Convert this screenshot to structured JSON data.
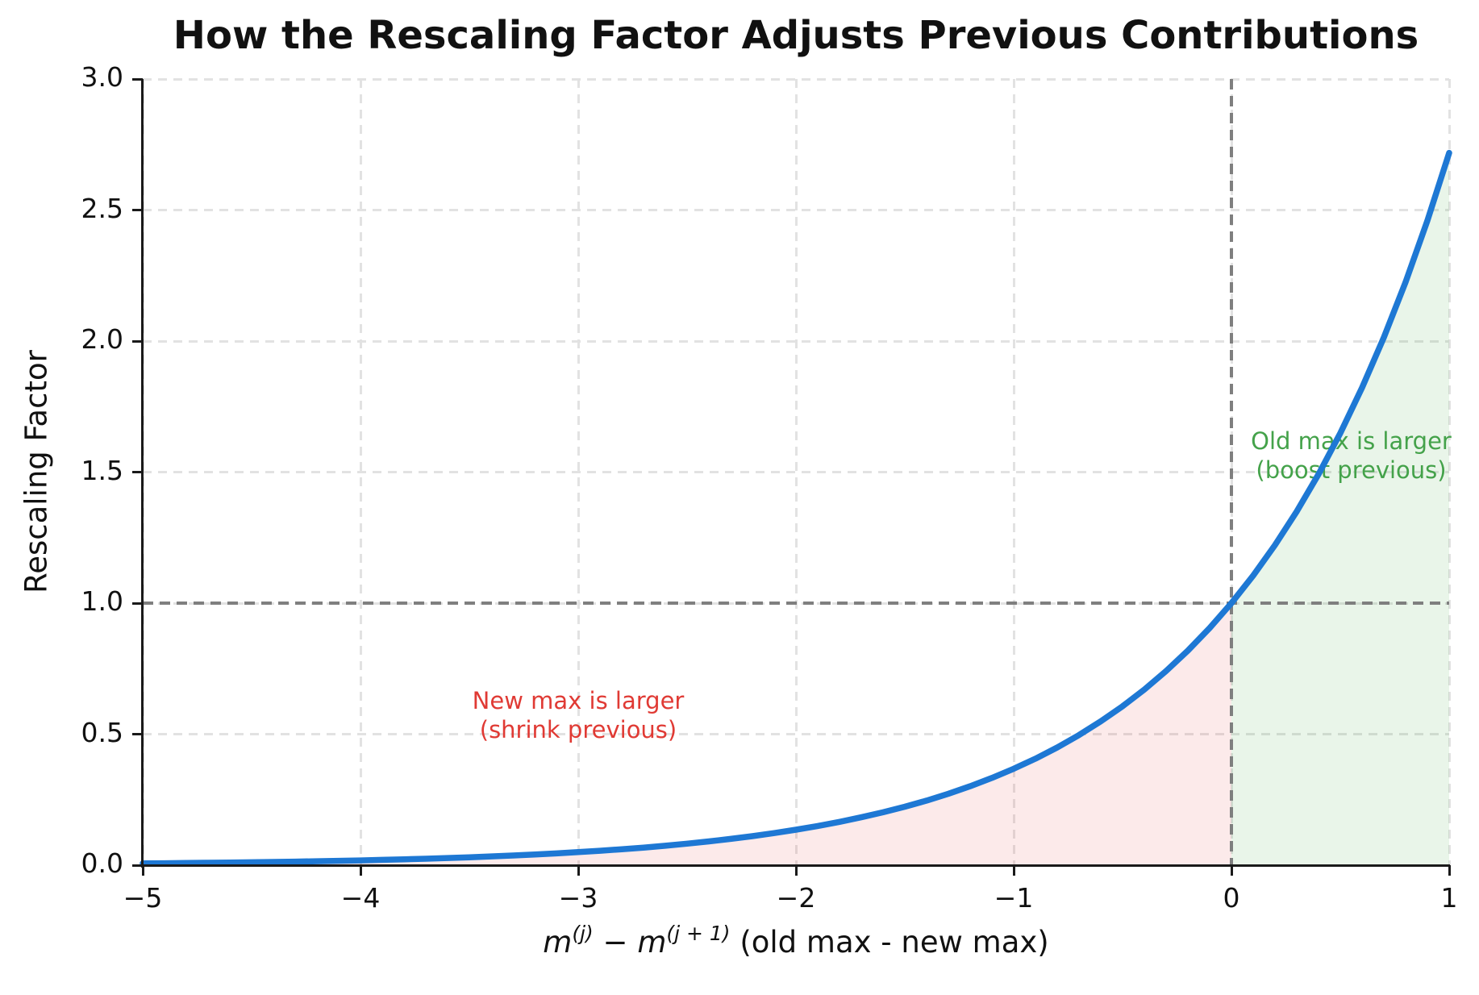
{
  "chart_data": {
    "type": "line",
    "title": "How the Rescaling Factor Adjusts Previous Contributions",
    "ylabel": "Rescaling Factor",
    "xlabel": {
      "var1": "m",
      "sup1": "(j)",
      "operator": " − ",
      "var2": "m",
      "sup2": "(j + 1)",
      "suffix": " (old max - new max)"
    },
    "xlim": [
      -5,
      1
    ],
    "ylim": [
      0,
      3
    ],
    "x_ticks": [
      -5,
      -4,
      -3,
      -2,
      -1,
      0,
      1
    ],
    "x_tick_labels": [
      "−5",
      "−4",
      "−3",
      "−2",
      "−1",
      "0",
      "1"
    ],
    "y_ticks": [
      0,
      0.5,
      1,
      1.5,
      2,
      2.5,
      3
    ],
    "y_tick_labels": [
      "0.0",
      "0.5",
      "1.0",
      "1.5",
      "2.0",
      "2.5",
      "3.0"
    ],
    "grid": true,
    "grid_style": "dashed",
    "series": [
      {
        "name": "rescaling-factor-exp-curve",
        "color": "#1e78d4",
        "line_width": 7.5,
        "x": [
          -5.0,
          -4.9,
          -4.8,
          -4.7,
          -4.6,
          -4.5,
          -4.4,
          -4.3,
          -4.2,
          -4.1,
          -4.0,
          -3.9,
          -3.8,
          -3.7,
          -3.6,
          -3.5,
          -3.4,
          -3.3,
          -3.2,
          -3.1,
          -3.0,
          -2.9,
          -2.8,
          -2.7,
          -2.6,
          -2.5,
          -2.4,
          -2.3,
          -2.2,
          -2.1,
          -2.0,
          -1.9,
          -1.8,
          -1.7,
          -1.6,
          -1.5,
          -1.4,
          -1.3,
          -1.2,
          -1.1,
          -1.0,
          -0.9,
          -0.8,
          -0.7,
          -0.6,
          -0.5,
          -0.4,
          -0.3,
          -0.2,
          -0.1,
          0.0,
          0.1,
          0.2,
          0.3,
          0.4,
          0.5,
          0.6,
          0.7,
          0.8,
          0.9,
          1.0
        ],
        "y": [
          0.0067,
          0.0074,
          0.0082,
          0.0091,
          0.0101,
          0.0111,
          0.0123,
          0.0136,
          0.015,
          0.0166,
          0.0183,
          0.0202,
          0.0224,
          0.0247,
          0.0273,
          0.0302,
          0.0334,
          0.0369,
          0.0408,
          0.045,
          0.0498,
          0.055,
          0.0608,
          0.0672,
          0.0743,
          0.0821,
          0.0907,
          0.1003,
          0.1108,
          0.1225,
          0.1353,
          0.1496,
          0.1653,
          0.1827,
          0.2019,
          0.2231,
          0.2466,
          0.2725,
          0.3012,
          0.3329,
          0.3679,
          0.4066,
          0.4493,
          0.4966,
          0.5488,
          0.6065,
          0.6703,
          0.7408,
          0.8187,
          0.9048,
          1.0,
          1.1052,
          1.2214,
          1.3499,
          1.4918,
          1.6487,
          1.8221,
          2.0138,
          2.2255,
          2.4596,
          2.7183
        ]
      }
    ],
    "reference_lines": {
      "horizontal_y": 1.0,
      "vertical_x": 0.0,
      "color": "#7f7f7f",
      "style": "dashed"
    },
    "regions": [
      {
        "name": "shrink-region",
        "x_from": -5,
        "x_to": 0,
        "fill": "rgba(224,49,49,0.10)"
      },
      {
        "name": "boost-region",
        "x_from": 0,
        "x_to": 1,
        "fill": "rgba(44,160,44,0.10)"
      }
    ],
    "annotations": [
      {
        "name": "shrink",
        "line1": "New max is larger",
        "line2": "(shrink previous)",
        "color": "#e03a34",
        "x": -3.0,
        "y": 0.57
      },
      {
        "name": "boost",
        "line1": "Old max is larger",
        "line2": "(boost previous)",
        "color": "#44a24a",
        "x": 0.55,
        "y": 1.56
      }
    ]
  }
}
